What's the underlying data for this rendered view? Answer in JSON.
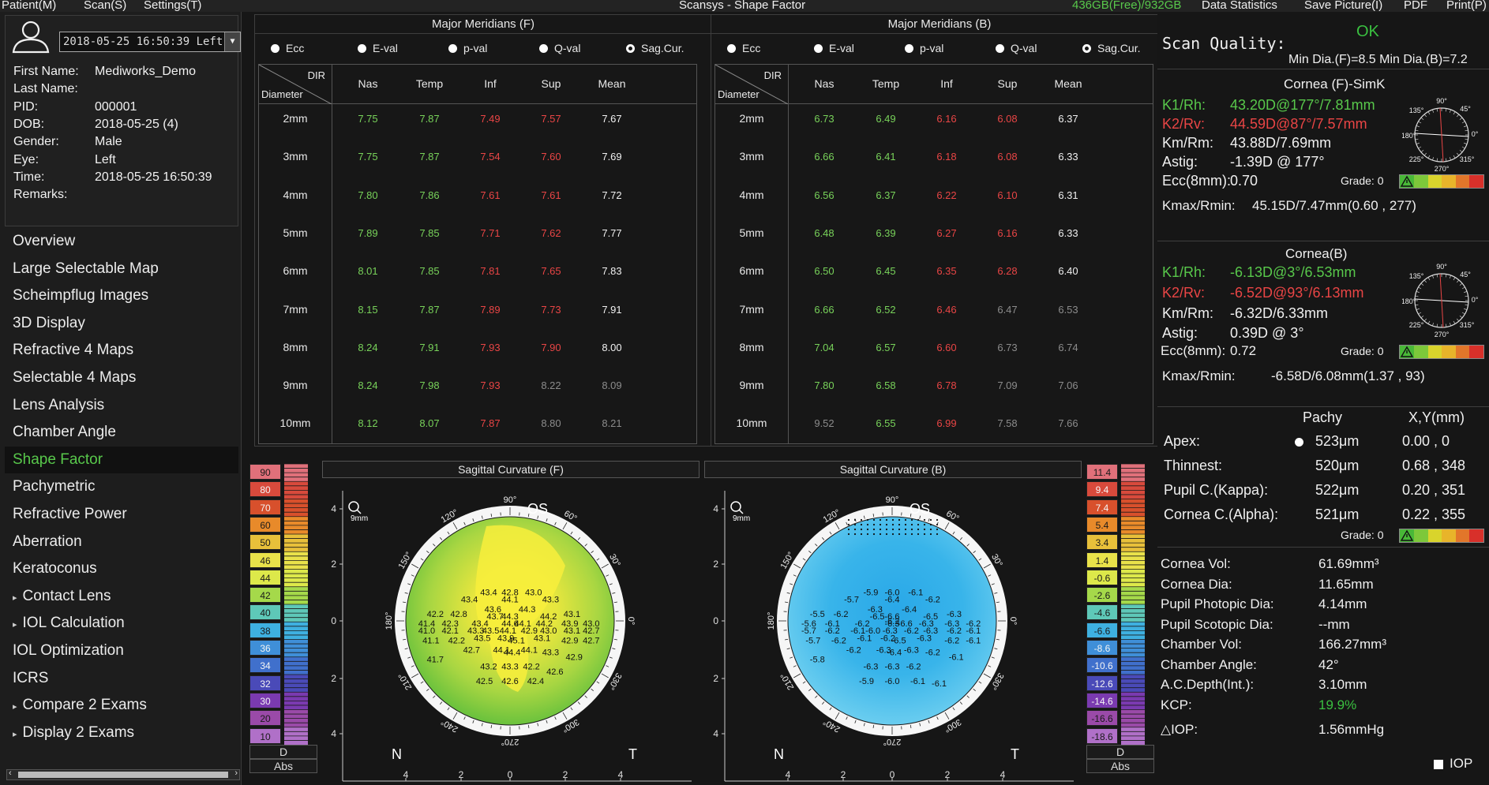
{
  "app_title": "Scansys - Shape Factor",
  "menu": {
    "left": [
      "Patient(M)",
      "Scan(S)",
      "Settings(T)"
    ],
    "disk": "436GB(Free)/932GB",
    "right": [
      "Data Statistics",
      "Save Picture(I)",
      "PDF",
      "Print(P)"
    ]
  },
  "patient": {
    "exam_select": "2018-05-25 16:50:39 Left",
    "fields": [
      {
        "label": "First Name:",
        "value": "Mediworks_Demo"
      },
      {
        "label": "Last Name:",
        "value": ""
      },
      {
        "label": "PID:",
        "value": "000001"
      },
      {
        "label": "DOB:",
        "value": "2018-05-25  (4)"
      },
      {
        "label": "Gender:",
        "value": "Male"
      },
      {
        "label": "Eye:",
        "value": "Left"
      },
      {
        "label": "Time:",
        "value": "2018-05-25 16:50:39"
      },
      {
        "label": "Remarks:",
        "value": ""
      }
    ]
  },
  "nav": [
    {
      "label": "Overview"
    },
    {
      "label": "Large Selectable Map"
    },
    {
      "label": "Scheimpflug Images"
    },
    {
      "label": "3D Display"
    },
    {
      "label": "Refractive 4 Maps"
    },
    {
      "label": "Selectable 4 Maps"
    },
    {
      "label": "Lens Analysis"
    },
    {
      "label": "Chamber Angle"
    },
    {
      "label": "Shape Factor",
      "active": true
    },
    {
      "label": "Pachymetric"
    },
    {
      "label": "Refractive Power"
    },
    {
      "label": "Aberration"
    },
    {
      "label": "Keratoconus"
    },
    {
      "label": "Contact Lens",
      "sub": true
    },
    {
      "label": "IOL Calculation",
      "sub": true
    },
    {
      "label": "IOL Optimization"
    },
    {
      "label": "ICRS"
    },
    {
      "label": "Compare 2 Exams",
      "sub": true
    },
    {
      "label": "Display 2 Exams",
      "sub": true
    }
  ],
  "radio_labels": [
    "Ecc",
    "E-val",
    "p-val",
    "Q-val",
    "Sag.Cur."
  ],
  "table_headers": {
    "dir": "DIR",
    "diameter": "Diameter",
    "cols": [
      "Nas",
      "Temp",
      "Inf",
      "Sup",
      "Mean"
    ]
  },
  "rows": [
    "2mm",
    "3mm",
    "4mm",
    "5mm",
    "6mm",
    "7mm",
    "8mm",
    "9mm",
    "10mm"
  ],
  "meridians_f": {
    "title": "Major Meridians (F)",
    "values": [
      [
        "7.75",
        "7.87",
        "7.49",
        "7.57",
        "7.67"
      ],
      [
        "7.75",
        "7.87",
        "7.54",
        "7.60",
        "7.69"
      ],
      [
        "7.80",
        "7.86",
        "7.61",
        "7.61",
        "7.72"
      ],
      [
        "7.89",
        "7.85",
        "7.71",
        "7.62",
        "7.77"
      ],
      [
        "8.01",
        "7.85",
        "7.81",
        "7.65",
        "7.83"
      ],
      [
        "8.15",
        "7.87",
        "7.89",
        "7.73",
        "7.91"
      ],
      [
        "8.24",
        "7.91",
        "7.93",
        "7.90",
        "8.00"
      ],
      [
        "8.24",
        "7.98",
        "7.93",
        "8.22",
        "8.09"
      ],
      [
        "8.12",
        "8.07",
        "7.87",
        "8.80",
        "8.21"
      ]
    ],
    "colors": [
      [
        "g",
        "g",
        "r",
        "r",
        "w"
      ],
      [
        "g",
        "g",
        "r",
        "r",
        "w"
      ],
      [
        "g",
        "g",
        "r",
        "r",
        "w"
      ],
      [
        "g",
        "g",
        "r",
        "r",
        "w"
      ],
      [
        "g",
        "g",
        "r",
        "r",
        "w"
      ],
      [
        "g",
        "g",
        "r",
        "r",
        "w"
      ],
      [
        "g",
        "g",
        "r",
        "r",
        "w"
      ],
      [
        "g",
        "g",
        "r",
        "d",
        "d"
      ],
      [
        "g",
        "g",
        "r",
        "d",
        "d"
      ]
    ]
  },
  "meridians_b": {
    "title": "Major Meridians (B)",
    "values": [
      [
        "6.73",
        "6.49",
        "6.16",
        "6.08",
        "6.37"
      ],
      [
        "6.66",
        "6.41",
        "6.18",
        "6.08",
        "6.33"
      ],
      [
        "6.56",
        "6.37",
        "6.22",
        "6.10",
        "6.31"
      ],
      [
        "6.48",
        "6.39",
        "6.27",
        "6.16",
        "6.33"
      ],
      [
        "6.50",
        "6.45",
        "6.35",
        "6.28",
        "6.40"
      ],
      [
        "6.66",
        "6.52",
        "6.46",
        "6.47",
        "6.53"
      ],
      [
        "7.04",
        "6.57",
        "6.60",
        "6.73",
        "6.74"
      ],
      [
        "7.80",
        "6.58",
        "6.78",
        "7.09",
        "7.06"
      ],
      [
        "9.52",
        "6.55",
        "6.99",
        "7.58",
        "7.66"
      ]
    ],
    "colors": [
      [
        "g",
        "g",
        "r",
        "r",
        "w"
      ],
      [
        "g",
        "g",
        "r",
        "r",
        "w"
      ],
      [
        "g",
        "g",
        "r",
        "r",
        "w"
      ],
      [
        "g",
        "g",
        "r",
        "r",
        "w"
      ],
      [
        "g",
        "g",
        "r",
        "r",
        "w"
      ],
      [
        "g",
        "g",
        "r",
        "d",
        "d"
      ],
      [
        "g",
        "g",
        "r",
        "d",
        "d"
      ],
      [
        "g",
        "g",
        "r",
        "d",
        "d"
      ],
      [
        "d",
        "g",
        "r",
        "d",
        "d"
      ]
    ]
  },
  "scale_f": {
    "values": [
      "90",
      "80",
      "70",
      "60",
      "50",
      "46",
      "44",
      "42",
      "40",
      "38",
      "36",
      "34",
      "32",
      "30",
      "20",
      "10"
    ],
    "colors": [
      "#e0707a",
      "#d84a3c",
      "#d8502c",
      "#e88a2a",
      "#e8c03a",
      "#e9e24a",
      "#dde84a",
      "#a5d94a",
      "#5ec8b8",
      "#3eb0e0",
      "#3f8fd8",
      "#4070cc",
      "#4a4ab8",
      "#7a3ab0",
      "#9a4aa8",
      "#b070c8"
    ],
    "unit": "D",
    "abs": "Abs"
  },
  "scale_b": {
    "values": [
      "11.4",
      "9.4",
      "7.4",
      "5.4",
      "3.4",
      "1.4",
      "-0.6",
      "-2.6",
      "-4.6",
      "-6.6",
      "-8.6",
      "-10.6",
      "-12.6",
      "-14.6",
      "-16.6",
      "-18.6"
    ],
    "colors": [
      "#e0707a",
      "#d84a3c",
      "#d8502c",
      "#e88a2a",
      "#e8c03a",
      "#e9e24a",
      "#dde84a",
      "#a5d94a",
      "#5ec8b8",
      "#3eb0e0",
      "#3f8fd8",
      "#4070cc",
      "#4a4ab8",
      "#7a3ab0",
      "#9a4aa8",
      "#b070c8"
    ],
    "unit": "D",
    "abs": "Abs"
  },
  "map_f": {
    "title": "Sagittal Curvature (F)",
    "eye": "OS",
    "n": "N",
    "t": "T",
    "zoom": "9mm",
    "deg": [
      "90°",
      "60°",
      "30°",
      "0°",
      "330°",
      "300°",
      "270°",
      "240°",
      "210°",
      "180°",
      "150°",
      "120°"
    ],
    "yticks": [
      "4",
      "2",
      "0",
      "2",
      "4"
    ],
    "xticks": [
      "4",
      "2",
      "0",
      "2",
      "4"
    ],
    "values": [
      [
        "43.4",
        "42.8",
        "43.0"
      ],
      [
        "43.4",
        "44.1",
        "43.3"
      ],
      [
        "43.6",
        "44.3"
      ],
      [
        "42.2",
        "42.8",
        "43.7",
        "44.3",
        "44.2",
        "43.1"
      ],
      [
        "41.4",
        "42.3",
        "43.4",
        "44.6",
        "44.1",
        "44.2",
        "43.9",
        "43.0"
      ],
      [
        "41.0",
        "42.1",
        "43.3",
        "43.5",
        "44.1",
        "42.9",
        "43.0",
        "43.1",
        "42.7"
      ],
      [
        "41.1",
        "42.2",
        "43.5",
        "43.9",
        "45.1",
        "43.1",
        "42.9",
        "42.7"
      ],
      [
        "42.7",
        "44.1",
        "44.4",
        "44.1",
        "43.3",
        "42.9"
      ],
      [
        "41.7",
        "43.2",
        "43.3",
        "42.2",
        "42.6"
      ],
      [
        "42.5",
        "42.6",
        "42.4"
      ]
    ]
  },
  "map_b": {
    "title": "Sagittal Curvature (B)",
    "eye": "OS",
    "n": "N",
    "t": "T",
    "zoom": "9mm",
    "deg": [
      "90°",
      "60°",
      "30°",
      "0°",
      "330°",
      "300°",
      "270°",
      "240°",
      "210°",
      "180°",
      "150°",
      "120°"
    ],
    "yticks": [
      "4",
      "2",
      "0",
      "2",
      "4"
    ],
    "xticks": [
      "4",
      "2",
      "0",
      "2",
      "4"
    ],
    "values": [
      [
        "-5.9",
        "-6.0",
        "-6.1"
      ],
      [
        "-5.7",
        "-6.4",
        "-6.2"
      ],
      [
        "-6.3",
        "-6.4"
      ],
      [
        "-5.5",
        "-6.2",
        "-6.5",
        "-6.6",
        "-6.5",
        "-6.3",
        "-6.2"
      ],
      [
        "-5.6",
        "-6.1",
        "-6.2",
        "-6.3",
        "-6.6",
        "-6.3",
        "-6.3",
        "-6.2"
      ],
      [
        "-5.7",
        "-6.2",
        "-6.1",
        "-6.0",
        "-6.3",
        "-6.2",
        "-6.3",
        "-6.2",
        "-6.1"
      ],
      [
        "-5.7",
        "-6.2",
        "-6.1",
        "-6.2",
        "-6.5",
        "-6.3",
        "-6.2",
        "-6.1"
      ],
      [
        "-6.2",
        "-6.3",
        "-6.4",
        "-6.3",
        "-6.2",
        "-6.1"
      ],
      [
        "-5.8",
        "-6.3",
        "-6.3",
        "-6.2"
      ],
      [
        "-5.9",
        "-6.0",
        "-6.1",
        "-6.1"
      ]
    ]
  },
  "right": {
    "scan_quality": "Scan Quality:",
    "scan_quality_val": "OK",
    "min_dia": "Min Dia.(F)=8.5  Min Dia.(B)=7.2",
    "front": {
      "title": "Cornea (F)-SimK",
      "k1l": "K1/Rh:",
      "k1": "43.20D@177°/7.81mm",
      "k2l": "K2/Rv:",
      "k2": "44.59D@87°/7.57mm",
      "kml": "Km/Rm:",
      "km": "43.88D/7.69mm",
      "astl": "Astig:",
      "ast": "-1.39D @ 177°",
      "eccl": "Ecc(8mm):",
      "ecc": "0.70",
      "grade": "Grade: 0",
      "kmaxl": "Kmax/Rmin:",
      "kmax": "45.15D/7.47mm(0.60 , 277)"
    },
    "back": {
      "title": "Cornea(B)",
      "k1l": "K1/Rh:",
      "k1": "-6.13D@3°/6.53mm",
      "k2l": "K2/Rv:",
      "k2": "-6.52D@93°/6.13mm",
      "kml": "Km/Rm:",
      "km": "-6.32D/6.33mm",
      "astl": "Astig:",
      "ast": "0.39D @ 3°",
      "eccl": "Ecc(8mm):",
      "ecc": "0.72",
      "grade": "Grade: 0",
      "kmaxl": "Kmax/Rmin:",
      "kmax": "-6.58D/6.08mm(1.37 , 93)"
    },
    "pachy": {
      "h1": "Pachy",
      "h2": "X,Y(mm)",
      "rows": [
        {
          "l": "Apex:",
          "v": "523μm",
          "xy": "0.00 , 0"
        },
        {
          "l": "Thinnest:",
          "v": "520μm",
          "xy": "0.68 , 348"
        },
        {
          "l": "Pupil C.(Kappa):",
          "v": "522μm",
          "xy": "0.20 , 351"
        },
        {
          "l": "Cornea C.(Alpha):",
          "v": "521μm",
          "xy": "0.22 , 355"
        }
      ],
      "grade": "Grade: 0"
    },
    "compass": {
      "n90": "90°",
      "n45": "45°",
      "n135": "135°",
      "n180": "180°",
      "n0": "0°",
      "n225": "225°",
      "n270": "270°",
      "n315": "315°"
    },
    "stats": [
      {
        "l": "Cornea Vol:",
        "v": "61.69mm³"
      },
      {
        "l": "Cornea Dia:",
        "v": "11.65mm"
      },
      {
        "l": "Pupil Photopic Dia:",
        "v": "4.14mm"
      },
      {
        "l": "Pupil Scotopic Dia:",
        "v": "--mm"
      },
      {
        "l": "Chamber Vol:",
        "v": "166.27mm³"
      },
      {
        "l": "Chamber Angle:",
        "v": "42°"
      },
      {
        "l": "A.C.Depth(Int.):",
        "v": "3.10mm"
      },
      {
        "l": "KCP:",
        "v": "19.9%",
        "green": true
      },
      {
        "l": "△IOP:",
        "v": "1.56mmHg"
      }
    ],
    "iop_label": "IOP"
  }
}
